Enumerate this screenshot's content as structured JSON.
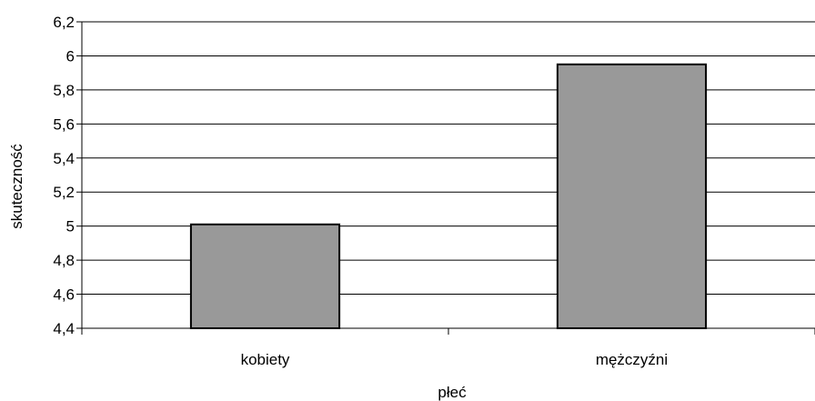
{
  "chart_data": {
    "type": "bar",
    "categories": [
      "kobiety",
      "mężczyźni"
    ],
    "values": [
      5.01,
      5.95
    ],
    "title": "",
    "xlabel": "płeć",
    "ylabel": "skuteczność",
    "ylim": [
      4.4,
      6.2
    ],
    "yticks": [
      4.4,
      4.6,
      4.8,
      5.0,
      5.2,
      5.4,
      5.6,
      5.8,
      6.0,
      6.2
    ],
    "ytick_labels": [
      "4,4",
      "4,6",
      "4,8",
      "5",
      "5,2",
      "5,4",
      "5,6",
      "5,8",
      "6",
      "6,2"
    ],
    "grid": true,
    "legend": "none",
    "colors": {
      "bar_fill": "#999999",
      "bar_stroke": "#000000",
      "grid": "#000000",
      "axis": "#000000"
    }
  }
}
